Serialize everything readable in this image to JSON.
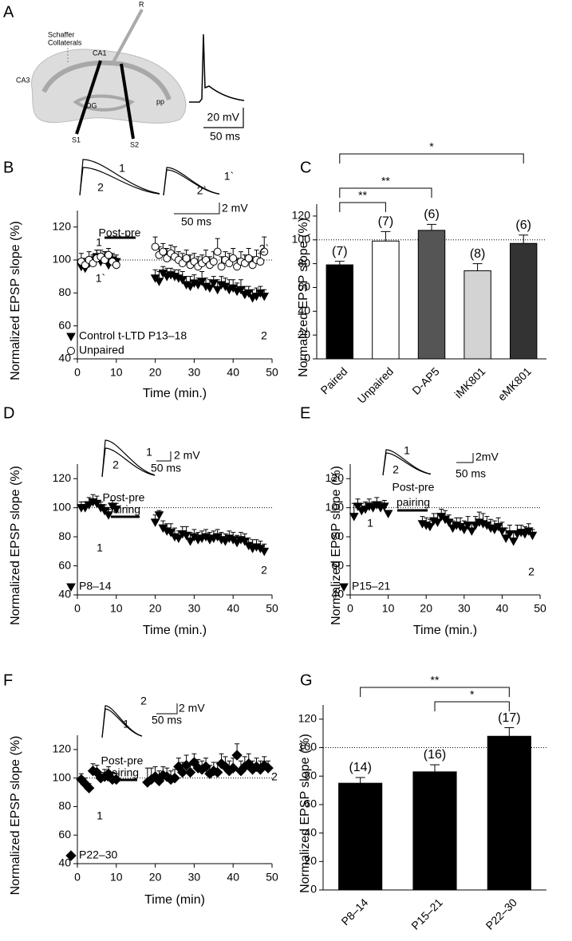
{
  "panel_a": {
    "letter": "A",
    "labels": [
      "R",
      "Schaffer",
      "Collaterals",
      "CA1",
      "CA3",
      "DG",
      "pp",
      "S1",
      "S2"
    ],
    "scale_labels": [
      "20 mV",
      "50 ms"
    ]
  },
  "chart_data": [
    {
      "type": "scatter",
      "panel": "B",
      "ylabel": "Normalized EPSP slope (%)",
      "xlabel": "Time (min.)",
      "xlim": [
        0,
        50
      ],
      "xticks": [
        0,
        10,
        20,
        30,
        40,
        50
      ],
      "ylim": [
        40,
        130
      ],
      "yticks": [
        40,
        60,
        80,
        100,
        120
      ],
      "reference_line": 100,
      "legend": "lower left",
      "pairing_label": [
        "Post-pre"
      ],
      "point_labels": [
        "1",
        "1`",
        "2",
        "2`"
      ],
      "inset_labels": [
        "1",
        "2",
        "1`",
        "2`",
        "2 mV",
        "50 ms"
      ],
      "x": [
        1,
        2,
        3,
        4,
        5,
        6,
        7,
        8,
        9,
        10,
        20,
        21,
        22,
        23,
        24,
        25,
        26,
        27,
        28,
        29,
        30,
        31,
        32,
        33,
        34,
        35,
        36,
        37,
        38,
        39,
        40,
        41,
        42,
        43,
        44,
        45,
        46,
        47,
        48
      ],
      "series": [
        {
          "name": "Control t-LTD P13–18",
          "marker": "triangle-down",
          "color": "#000000",
          "values": [
            96,
            95,
            98,
            100,
            102,
            99,
            101,
            97,
            100,
            99,
            89,
            87,
            92,
            90,
            91,
            90,
            89,
            88,
            85,
            84,
            86,
            85,
            87,
            84,
            83,
            86,
            82,
            85,
            84,
            82,
            83,
            81,
            82,
            79,
            80,
            77,
            78,
            80,
            78
          ],
          "errors": [
            4,
            5,
            4,
            3,
            4,
            5,
            4,
            4,
            3,
            4,
            5,
            6,
            4,
            5,
            4,
            4,
            5,
            5,
            5,
            6,
            5,
            4,
            6,
            5,
            5,
            4,
            6,
            5,
            5,
            6,
            5,
            5,
            6,
            5,
            4,
            5,
            5,
            4,
            4
          ]
        },
        {
          "name": "Unpaired",
          "marker": "circle",
          "color": "#ffffff",
          "values": [
            99,
            97,
            100,
            98,
            101,
            102,
            100,
            103,
            99,
            97,
            108,
            103,
            105,
            101,
            104,
            102,
            100,
            98,
            101,
            97,
            99,
            96,
            98,
            100,
            97,
            99,
            105,
            96,
            100,
            98,
            101,
            96,
            99,
            98,
            101,
            97,
            100,
            99,
            105
          ],
          "errors": [
            5,
            4,
            5,
            4,
            5,
            4,
            5,
            4,
            5,
            4,
            6,
            5,
            5,
            6,
            5,
            6,
            5,
            6,
            5,
            6,
            5,
            6,
            5,
            6,
            5,
            6,
            8,
            6,
            5,
            6,
            6,
            5,
            6,
            5,
            6,
            5,
            6,
            5,
            9
          ]
        }
      ]
    },
    {
      "type": "bar",
      "panel": "C",
      "ylabel": "Normalized EPSP slope (%)",
      "categories": [
        "Paired",
        "Unpaired",
        "D-AP5",
        "iMK801",
        "eMK801"
      ],
      "values": [
        79,
        99,
        108,
        74,
        97
      ],
      "errors": [
        3,
        8,
        5,
        6,
        7
      ],
      "colors": [
        "#000000",
        "#ffffff",
        "#555555",
        "#d3d3d3",
        "#333333"
      ],
      "n_labels": [
        "(7)",
        "(7)",
        "(6)",
        "(8)",
        "(6)"
      ],
      "significance_labels": [
        "*",
        "**",
        "**"
      ],
      "ylim": [
        0,
        130
      ],
      "yticks": [
        0,
        20,
        40,
        60,
        80,
        100,
        120
      ],
      "reference_line": 100
    },
    {
      "type": "scatter",
      "panel": "D",
      "ylabel": "Normalized EPSP slope (%)",
      "xlabel": "Time (min.)",
      "xlim": [
        0,
        50
      ],
      "xticks": [
        0,
        10,
        20,
        30,
        40,
        50
      ],
      "ylim": [
        40,
        130
      ],
      "yticks": [
        40,
        60,
        80,
        100,
        120
      ],
      "reference_line": 100,
      "legend": "lower left",
      "pairing_label": [
        "Post-pre",
        "pairing"
      ],
      "point_labels": [
        "1",
        "2"
      ],
      "inset_labels": [
        "1",
        "2",
        "2 mV",
        "50 ms"
      ],
      "x": [
        1,
        2,
        3,
        4,
        5,
        6,
        7,
        8,
        9,
        10,
        20,
        21,
        22,
        23,
        24,
        25,
        26,
        27,
        28,
        29,
        30,
        31,
        32,
        33,
        34,
        35,
        36,
        37,
        38,
        39,
        40,
        41,
        42,
        43,
        44,
        45,
        46,
        47,
        48
      ],
      "series": [
        {
          "name": "P8–14",
          "marker": "triangle-down",
          "color": "#000000",
          "values": [
            100,
            100,
            102,
            104,
            103,
            100,
            98,
            95,
            101,
            99,
            90,
            95,
            86,
            84,
            83,
            80,
            79,
            82,
            81,
            77,
            80,
            78,
            79,
            80,
            78,
            79,
            80,
            78,
            77,
            79,
            78,
            76,
            78,
            77,
            74,
            72,
            73,
            72,
            70
          ],
          "errors": [
            4,
            4,
            5,
            5,
            5,
            4,
            4,
            4,
            4,
            4,
            5,
            3,
            5,
            5,
            6,
            6,
            5,
            5,
            6,
            6,
            5,
            5,
            5,
            5,
            5,
            5,
            5,
            5,
            5,
            5,
            5,
            5,
            5,
            5,
            5,
            6,
            5,
            5,
            5
          ]
        }
      ]
    },
    {
      "type": "scatter",
      "panel": "E",
      "ylabel": "Normalized EPSP slope (%)",
      "xlabel": "Time (min.)",
      "xlim": [
        0,
        50
      ],
      "xticks": [
        0,
        10,
        20,
        30,
        40,
        50
      ],
      "ylim": [
        40,
        130
      ],
      "yticks": [
        40,
        60,
        80,
        100,
        120
      ],
      "reference_line": 100,
      "legend": "lower left",
      "pairing_label": [
        "Post-pre",
        "pairing"
      ],
      "point_labels": [
        "1",
        "2"
      ],
      "inset_labels": [
        "1",
        "2",
        "2mV",
        "50 ms"
      ],
      "x": [
        1,
        2,
        3,
        4,
        5,
        6,
        7,
        8,
        9,
        10,
        19,
        20,
        21,
        22,
        23,
        24,
        25,
        26,
        27,
        28,
        29,
        30,
        31,
        32,
        33,
        34,
        35,
        36,
        37,
        38,
        39,
        40,
        41,
        42,
        43,
        44,
        45,
        46,
        47,
        48
      ],
      "series": [
        {
          "name": "P15–21",
          "marker": "triangle-down",
          "color": "#000000",
          "values": [
            94,
            101,
            98,
            99,
            101,
            100,
            102,
            100,
            101,
            96,
            89,
            88,
            87,
            91,
            90,
            94,
            92,
            90,
            86,
            88,
            87,
            85,
            88,
            84,
            88,
            90,
            89,
            88,
            86,
            85,
            87,
            84,
            79,
            82,
            77,
            82,
            83,
            82,
            84,
            81
          ],
          "errors": [
            9,
            5,
            5,
            5,
            5,
            4,
            5,
            4,
            4,
            2,
            5,
            5,
            5,
            5,
            6,
            5,
            6,
            5,
            5,
            5,
            6,
            6,
            6,
            6,
            6,
            7,
            7,
            6,
            6,
            6,
            6,
            6,
            7,
            6,
            6,
            6,
            5,
            5,
            5,
            4
          ]
        }
      ]
    },
    {
      "type": "scatter",
      "panel": "F",
      "ylabel": "Normalized EPSP slope (%)",
      "xlabel": "Time (min)",
      "xlim": [
        0,
        50
      ],
      "xticks": [
        0,
        10,
        20,
        30,
        40,
        50
      ],
      "ylim": [
        40,
        130
      ],
      "yticks": [
        40,
        60,
        80,
        100,
        120
      ],
      "reference_line": 100,
      "legend": "lower left",
      "pairing_label": [
        "Post-pre",
        "pairing"
      ],
      "point_labels": [
        "1",
        "2"
      ],
      "inset_labels": [
        "2",
        "1",
        "2 mV",
        "50 ms"
      ],
      "x": [
        1,
        2,
        3,
        4,
        5,
        6,
        7,
        8,
        9,
        10,
        18,
        19,
        20,
        21,
        22,
        23,
        24,
        25,
        26,
        27,
        28,
        29,
        30,
        31,
        32,
        33,
        34,
        35,
        36,
        37,
        38,
        39,
        40,
        41,
        42,
        43,
        44,
        45,
        46,
        47,
        48,
        49
      ],
      "series": [
        {
          "name": "P22–30",
          "marker": "diamond",
          "color": "#000000",
          "values": [
            99,
            96,
            93,
            105,
            104,
            100,
            101,
            103,
            99,
            99,
            97,
            99,
            101,
            98,
            102,
            101,
            99,
            100,
            108,
            104,
            109,
            104,
            111,
            107,
            106,
            108,
            103,
            105,
            104,
            110,
            108,
            105,
            107,
            116,
            105,
            108,
            110,
            106,
            108,
            106,
            109,
            107
          ],
          "errors": [
            4,
            4,
            3,
            5,
            5,
            4,
            5,
            5,
            5,
            4,
            10,
            8,
            7,
            7,
            6,
            6,
            6,
            6,
            6,
            7,
            7,
            6,
            6,
            6,
            6,
            6,
            6,
            6,
            7,
            7,
            7,
            7,
            7,
            8,
            7,
            7,
            7,
            6,
            6,
            6,
            6,
            5
          ]
        }
      ]
    },
    {
      "type": "bar",
      "panel": "G",
      "ylabel": "Normalized EPSP slope (%)",
      "categories": [
        "P8–14",
        "P15–21",
        "P22–30"
      ],
      "values": [
        75,
        83,
        108
      ],
      "errors": [
        4,
        5,
        6
      ],
      "color": "#000000",
      "n_labels": [
        "(14)",
        "(16)",
        "(17)"
      ],
      "significance_labels": [
        "**",
        "*"
      ],
      "ylim": [
        0,
        130
      ],
      "yticks": [
        0,
        20,
        40,
        60,
        80,
        100,
        120
      ],
      "reference_line": 100
    }
  ]
}
